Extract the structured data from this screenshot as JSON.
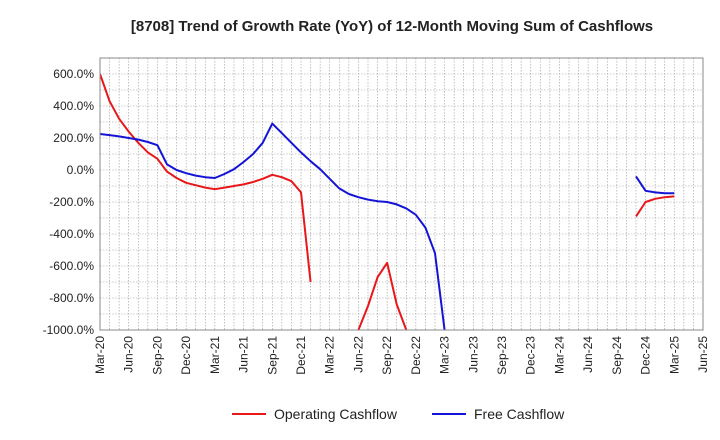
{
  "chart_data": {
    "type": "line",
    "title": "[8708]  Trend of Growth Rate (YoY) of 12-Month Moving Sum of Cashflows",
    "xlabel": "",
    "ylabel": "",
    "ylim": [
      -1000,
      700
    ],
    "y_ticks": [
      600,
      400,
      200,
      0,
      -200,
      -400,
      -600,
      -800,
      -1000
    ],
    "y_tick_labels": [
      "600.0%",
      "400.0%",
      "200.0%",
      "0.0%",
      "-200.0%",
      "-400.0%",
      "-600.0%",
      "-800.0%",
      "-1000.0%"
    ],
    "x_tick_labels": [
      "Mar-20",
      "Jun-20",
      "Sep-20",
      "Dec-20",
      "Mar-21",
      "Jun-21",
      "Sep-21",
      "Dec-21",
      "Mar-22",
      "Jun-22",
      "Sep-22",
      "Dec-22",
      "Mar-23",
      "Jun-23",
      "Sep-23",
      "Dec-23",
      "Mar-24",
      "Jun-24",
      "Sep-24",
      "Dec-24",
      "Mar-25",
      "Jun-25"
    ],
    "grid": true,
    "legend_position": "bottom",
    "series": [
      {
        "name": "Operating Cashflow",
        "color": "#e8171a",
        "points": [
          [
            "2020-03",
            600
          ],
          [
            "2020-04",
            430
          ],
          [
            "2020-05",
            320
          ],
          [
            "2020-06",
            240
          ],
          [
            "2020-07",
            170
          ],
          [
            "2020-08",
            110
          ],
          [
            "2020-09",
            70
          ],
          [
            "2020-10",
            -10
          ],
          [
            "2020-11",
            -50
          ],
          [
            "2020-12",
            -80
          ],
          [
            "2021-01",
            -95
          ],
          [
            "2021-02",
            -110
          ],
          [
            "2021-03",
            -120
          ],
          [
            "2021-04",
            -110
          ],
          [
            "2021-05",
            -100
          ],
          [
            "2021-06",
            -90
          ],
          [
            "2021-07",
            -75
          ],
          [
            "2021-08",
            -55
          ],
          [
            "2021-09",
            -30
          ],
          [
            "2021-10",
            -45
          ],
          [
            "2021-11",
            -70
          ],
          [
            "2021-12",
            -140
          ],
          [
            "2022-01",
            -700
          ],
          [
            "2022-06",
            -1000
          ],
          [
            "2022-07",
            -850
          ],
          [
            "2022-08",
            -670
          ],
          [
            "2022-09",
            -580
          ],
          [
            "2022-10",
            -840
          ],
          [
            "2022-11",
            -1000
          ],
          [
            "2024-11",
            -290
          ],
          [
            "2024-12",
            -200
          ],
          [
            "2025-01",
            -180
          ],
          [
            "2025-02",
            -170
          ],
          [
            "2025-03",
            -165
          ]
        ]
      },
      {
        "name": "Free Cashflow",
        "color": "#1414d6",
        "points": [
          [
            "2020-03",
            225
          ],
          [
            "2020-04",
            218
          ],
          [
            "2020-05",
            210
          ],
          [
            "2020-06",
            200
          ],
          [
            "2020-07",
            190
          ],
          [
            "2020-08",
            175
          ],
          [
            "2020-09",
            155
          ],
          [
            "2020-10",
            35
          ],
          [
            "2020-11",
            0
          ],
          [
            "2020-12",
            -20
          ],
          [
            "2021-01",
            -35
          ],
          [
            "2021-02",
            -45
          ],
          [
            "2021-03",
            -50
          ],
          [
            "2021-04",
            -25
          ],
          [
            "2021-05",
            5
          ],
          [
            "2021-06",
            50
          ],
          [
            "2021-07",
            100
          ],
          [
            "2021-08",
            170
          ],
          [
            "2021-09",
            290
          ],
          [
            "2021-10",
            230
          ],
          [
            "2021-11",
            170
          ],
          [
            "2021-12",
            110
          ],
          [
            "2022-01",
            55
          ],
          [
            "2022-02",
            5
          ],
          [
            "2022-03",
            -55
          ],
          [
            "2022-04",
            -115
          ],
          [
            "2022-05",
            -150
          ],
          [
            "2022-06",
            -170
          ],
          [
            "2022-07",
            -185
          ],
          [
            "2022-08",
            -195
          ],
          [
            "2022-09",
            -200
          ],
          [
            "2022-10",
            -215
          ],
          [
            "2022-11",
            -240
          ],
          [
            "2022-12",
            -280
          ],
          [
            "2023-01",
            -360
          ],
          [
            "2023-02",
            -520
          ],
          [
            "2023-03",
            -1000
          ],
          [
            "2024-11",
            -40
          ],
          [
            "2024-12",
            -130
          ],
          [
            "2025-01",
            -140
          ],
          [
            "2025-02",
            -145
          ],
          [
            "2025-03",
            -145
          ]
        ]
      }
    ]
  }
}
